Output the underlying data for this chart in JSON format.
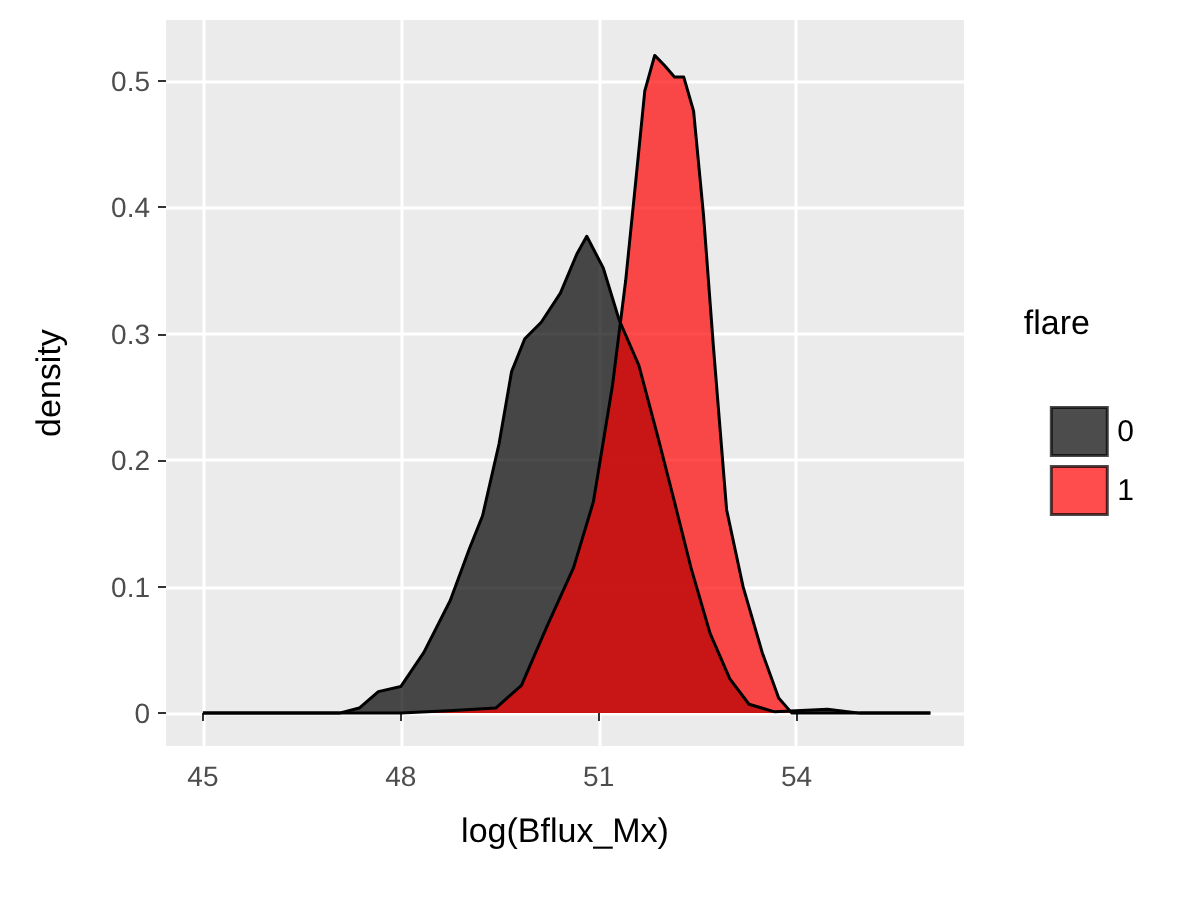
{
  "chart_data": {
    "type": "area",
    "xlabel": "log(Bflux_Mx)",
    "ylabel": "density",
    "legend_title": "flare",
    "legend": "right",
    "grid": true,
    "line_style": "solid",
    "marker": "none",
    "xlim": [
      44.44,
      56.54
    ],
    "ylim": [
      -0.026,
      0.548
    ],
    "xticks": [
      45,
      48,
      51,
      54
    ],
    "yticks": [
      0,
      0.1,
      0.2,
      0.3,
      0.4,
      0.5
    ],
    "series": [
      {
        "name": "0",
        "color": "#000000",
        "x": [
          45,
          47.07,
          47.37,
          47.66,
          48.0,
          48.35,
          48.75,
          49.04,
          49.24,
          49.49,
          49.68,
          49.88,
          50.13,
          50.42,
          50.67,
          50.82,
          51.07,
          51.31,
          51.61,
          51.9,
          52.15,
          52.4,
          52.69,
          52.99,
          53.28,
          53.67,
          54.47,
          54.96,
          56.03
        ],
        "values": [
          0,
          0,
          0.004,
          0.017,
          0.021,
          0.048,
          0.089,
          0.13,
          0.156,
          0.213,
          0.27,
          0.296,
          0.309,
          0.332,
          0.363,
          0.377,
          0.352,
          0.311,
          0.275,
          0.218,
          0.167,
          0.115,
          0.063,
          0.027,
          0.007,
          0.001,
          0.003,
          0,
          0
        ]
      },
      {
        "name": "1",
        "color": "#ff0000",
        "x": [
          45,
          48.0,
          48.8,
          49.44,
          49.83,
          50.22,
          50.62,
          50.92,
          51.21,
          51.41,
          51.56,
          51.7,
          51.85,
          52.0,
          52.15,
          52.29,
          52.44,
          52.59,
          52.74,
          52.94,
          53.19,
          53.48,
          53.73,
          53.93,
          56.03
        ],
        "values": [
          0,
          0,
          0.002,
          0.004,
          0.022,
          0.069,
          0.115,
          0.167,
          0.259,
          0.342,
          0.419,
          0.492,
          0.52,
          0.512,
          0.503,
          0.503,
          0.476,
          0.394,
          0.29,
          0.161,
          0.1,
          0.048,
          0.012,
          0,
          0
        ]
      }
    ]
  }
}
